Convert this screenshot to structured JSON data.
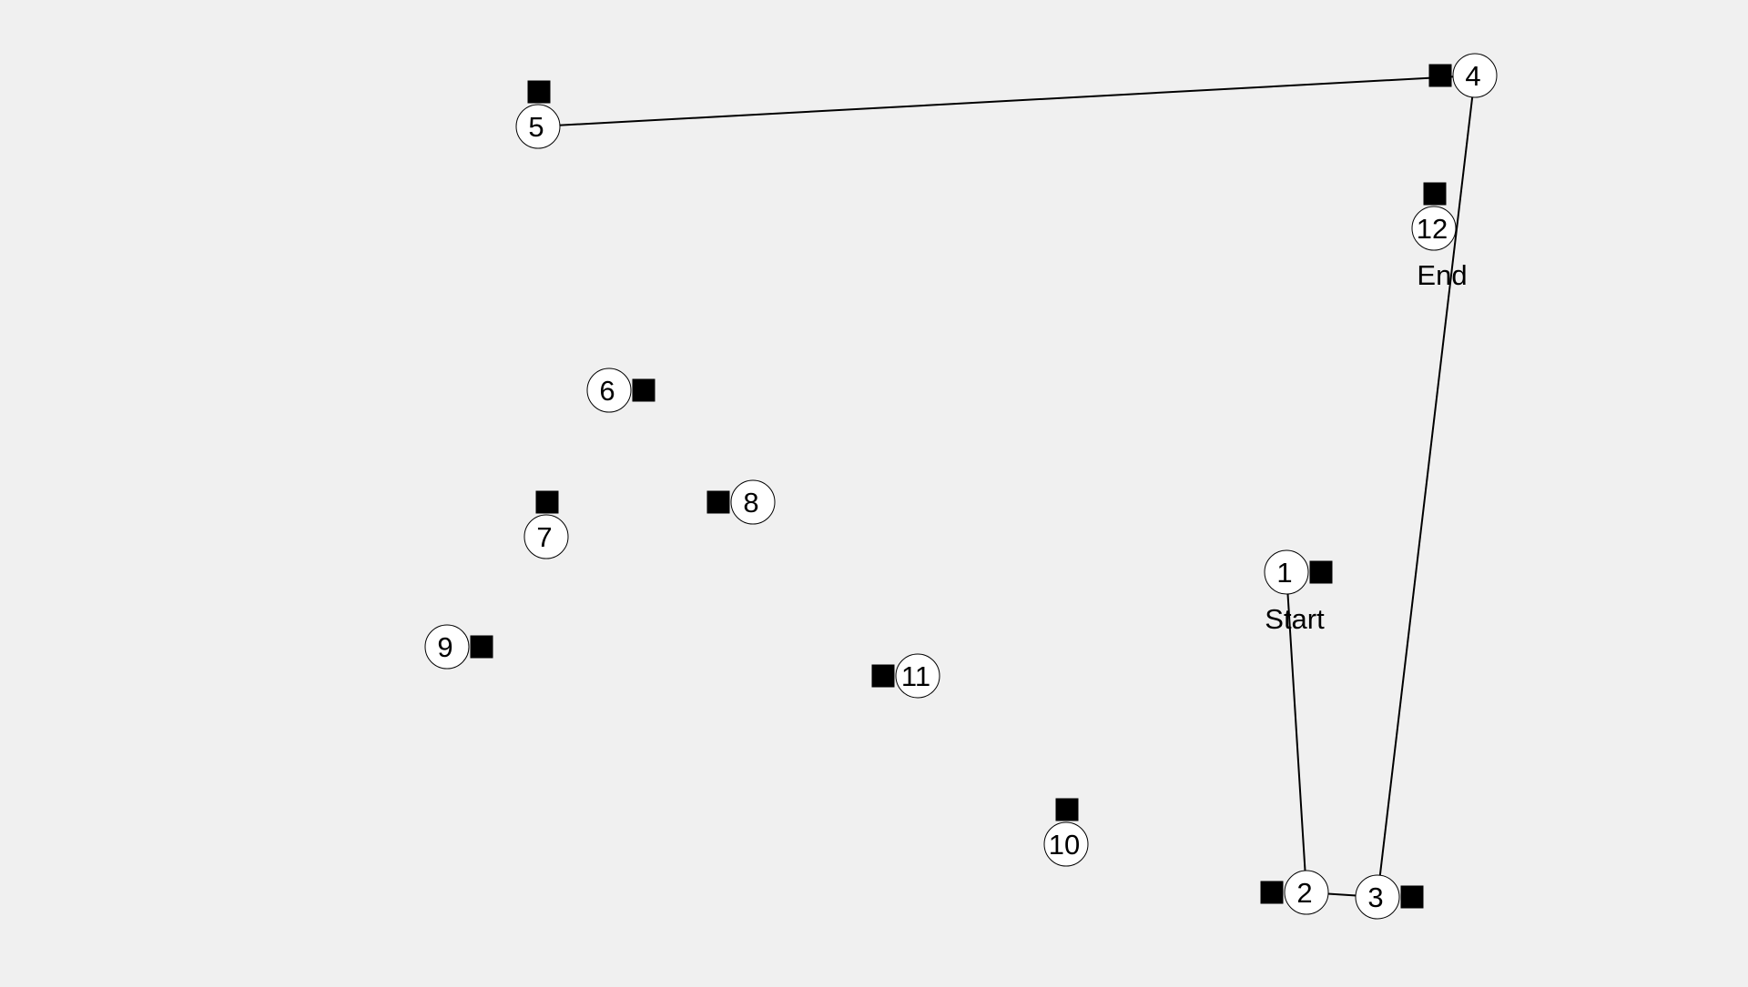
{
  "puzzle": {
    "colors": {
      "background": "#f0f0f0",
      "node_fill": "#ffffff",
      "node_stroke": "#000000",
      "line": "#000000",
      "marker": "#000000"
    },
    "nodes": [
      {
        "id": 1,
        "label": "1",
        "tag": "Start"
      },
      {
        "id": 2,
        "label": "2",
        "tag": ""
      },
      {
        "id": 3,
        "label": "3",
        "tag": ""
      },
      {
        "id": 4,
        "label": "4",
        "tag": ""
      },
      {
        "id": 5,
        "label": "5",
        "tag": ""
      },
      {
        "id": 6,
        "label": "6",
        "tag": ""
      },
      {
        "id": 7,
        "label": "7",
        "tag": ""
      },
      {
        "id": 8,
        "label": "8",
        "tag": ""
      },
      {
        "id": 9,
        "label": "9",
        "tag": ""
      },
      {
        "id": 10,
        "label": "10",
        "tag": ""
      },
      {
        "id": 11,
        "label": "11",
        "tag": ""
      },
      {
        "id": 12,
        "label": "12",
        "tag": "End"
      }
    ],
    "path_order": [
      1,
      2,
      3,
      4,
      5
    ]
  }
}
